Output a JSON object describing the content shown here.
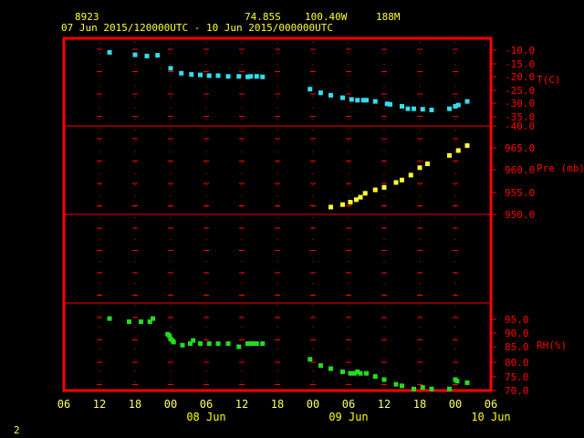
{
  "header": {
    "station_id": "8923",
    "lat": "74.85S",
    "lon": "100.40W",
    "elevation": "188M",
    "time_range": "07 Jun 2015/120000UTC - 10 Jun 2015/000000UTC"
  },
  "corner_label": "2",
  "colors": {
    "frame": "#ff0000",
    "axis_text": "#ff0000",
    "date_text": "#ffff00",
    "temperature": "#33ddee",
    "pressure": "#ffff33",
    "humidity": "#22dd22"
  },
  "chart_data": {
    "type": "scatter",
    "x_axis": {
      "tick_labels": [
        "06",
        "12",
        "18",
        "00",
        "06",
        "12",
        "18",
        "00",
        "06",
        "12",
        "18",
        "00",
        "06"
      ],
      "date_labels": [
        "08 Jun",
        "09 Jun",
        "10 Jun"
      ],
      "range_hours": [
        -6,
        66
      ]
    },
    "panels": [
      {
        "name": "temperature",
        "label": "T(C)",
        "ticks": [
          "-10.0",
          "-15.0",
          "-20.0",
          "-25.0",
          "-30.0",
          "-35.0",
          "-40.0"
        ],
        "ylim": [
          -40,
          -8
        ],
        "points": [
          [
            1.7,
            -10.0
          ],
          [
            6.0,
            -11.0
          ],
          [
            8.0,
            -11.5
          ],
          [
            9.8,
            -11.2
          ],
          [
            12.0,
            -16.5
          ],
          [
            13.8,
            -18.5
          ],
          [
            15.5,
            -19.0
          ],
          [
            17.0,
            -19.2
          ],
          [
            18.5,
            -19.5
          ],
          [
            20.0,
            -19.5
          ],
          [
            21.7,
            -19.8
          ],
          [
            23.5,
            -19.8
          ],
          [
            25.0,
            -20.0
          ],
          [
            25.5,
            -19.8
          ],
          [
            26.5,
            -19.8
          ],
          [
            27.5,
            -20.0
          ],
          [
            35.5,
            -25.0
          ],
          [
            37.3,
            -26.5
          ],
          [
            39.0,
            -27.5
          ],
          [
            41.0,
            -28.5
          ],
          [
            42.5,
            -29.2
          ],
          [
            43.5,
            -29.5
          ],
          [
            44.5,
            -29.5
          ],
          [
            45.0,
            -29.5
          ],
          [
            46.5,
            -30.0
          ],
          [
            48.5,
            -31.0
          ],
          [
            49.0,
            -31.2
          ],
          [
            51.0,
            -32.0
          ],
          [
            52.0,
            -33.0
          ],
          [
            53.0,
            -33.0
          ],
          [
            54.5,
            -33.2
          ],
          [
            56.0,
            -33.5
          ],
          [
            59.0,
            -33.0
          ],
          [
            60.0,
            -32.0
          ],
          [
            60.5,
            -31.5
          ],
          [
            62.0,
            -30.0
          ]
        ]
      },
      {
        "name": "pressure",
        "label": "Pre (mb)",
        "ticks": [
          "965.0",
          "960.0",
          "955.0",
          "950.0"
        ],
        "ylim": [
          950,
          968
        ],
        "points": [
          [
            39.0,
            951.5
          ],
          [
            41.0,
            952.0
          ],
          [
            42.3,
            952.5
          ],
          [
            43.3,
            953.0
          ],
          [
            44.0,
            953.5
          ],
          [
            44.8,
            954.3
          ],
          [
            46.5,
            955.0
          ],
          [
            48.0,
            955.5
          ],
          [
            50.0,
            956.5
          ],
          [
            51.0,
            957.0
          ],
          [
            52.5,
            958.0
          ],
          [
            54.0,
            959.5
          ],
          [
            55.3,
            960.3
          ],
          [
            59.0,
            962.0
          ],
          [
            60.5,
            963.0
          ],
          [
            62.0,
            964.0
          ]
        ]
      },
      {
        "name": "humidity",
        "label": "RH(%)",
        "ticks": [
          "95.0",
          "90.0",
          "85.0",
          "80.0",
          "75.0",
          "70.0"
        ],
        "ylim": [
          70,
          98
        ],
        "points": [
          [
            1.7,
            93.0
          ],
          [
            5.0,
            92.0
          ],
          [
            7.0,
            92.0
          ],
          [
            8.5,
            92.0
          ],
          [
            9.0,
            93.0
          ],
          [
            11.5,
            88.0
          ],
          [
            11.8,
            87.5
          ],
          [
            12.0,
            86.5
          ],
          [
            12.3,
            86.0
          ],
          [
            12.5,
            85.5
          ],
          [
            14.0,
            84.5
          ],
          [
            15.3,
            85.0
          ],
          [
            15.8,
            86.0
          ],
          [
            17.0,
            85.0
          ],
          [
            18.5,
            85.0
          ],
          [
            20.0,
            85.0
          ],
          [
            21.7,
            85.0
          ],
          [
            23.5,
            84.0
          ],
          [
            25.0,
            85.0
          ],
          [
            25.5,
            85.0
          ],
          [
            26.0,
            85.0
          ],
          [
            26.5,
            85.0
          ],
          [
            27.5,
            85.0
          ],
          [
            35.5,
            80.0
          ],
          [
            37.3,
            78.0
          ],
          [
            39.0,
            77.0
          ],
          [
            41.0,
            76.0
          ],
          [
            42.3,
            75.5
          ],
          [
            43.0,
            75.5
          ],
          [
            43.5,
            76.0
          ],
          [
            44.0,
            75.5
          ],
          [
            45.0,
            75.5
          ],
          [
            46.5,
            74.5
          ],
          [
            48.0,
            73.5
          ],
          [
            50.0,
            72.0
          ],
          [
            51.0,
            71.5
          ],
          [
            53.0,
            70.5
          ],
          [
            54.5,
            71.0
          ],
          [
            56.0,
            70.5
          ],
          [
            59.0,
            70.5
          ],
          [
            60.0,
            73.5
          ],
          [
            60.3,
            73.0
          ],
          [
            62.0,
            72.5
          ]
        ]
      }
    ]
  }
}
